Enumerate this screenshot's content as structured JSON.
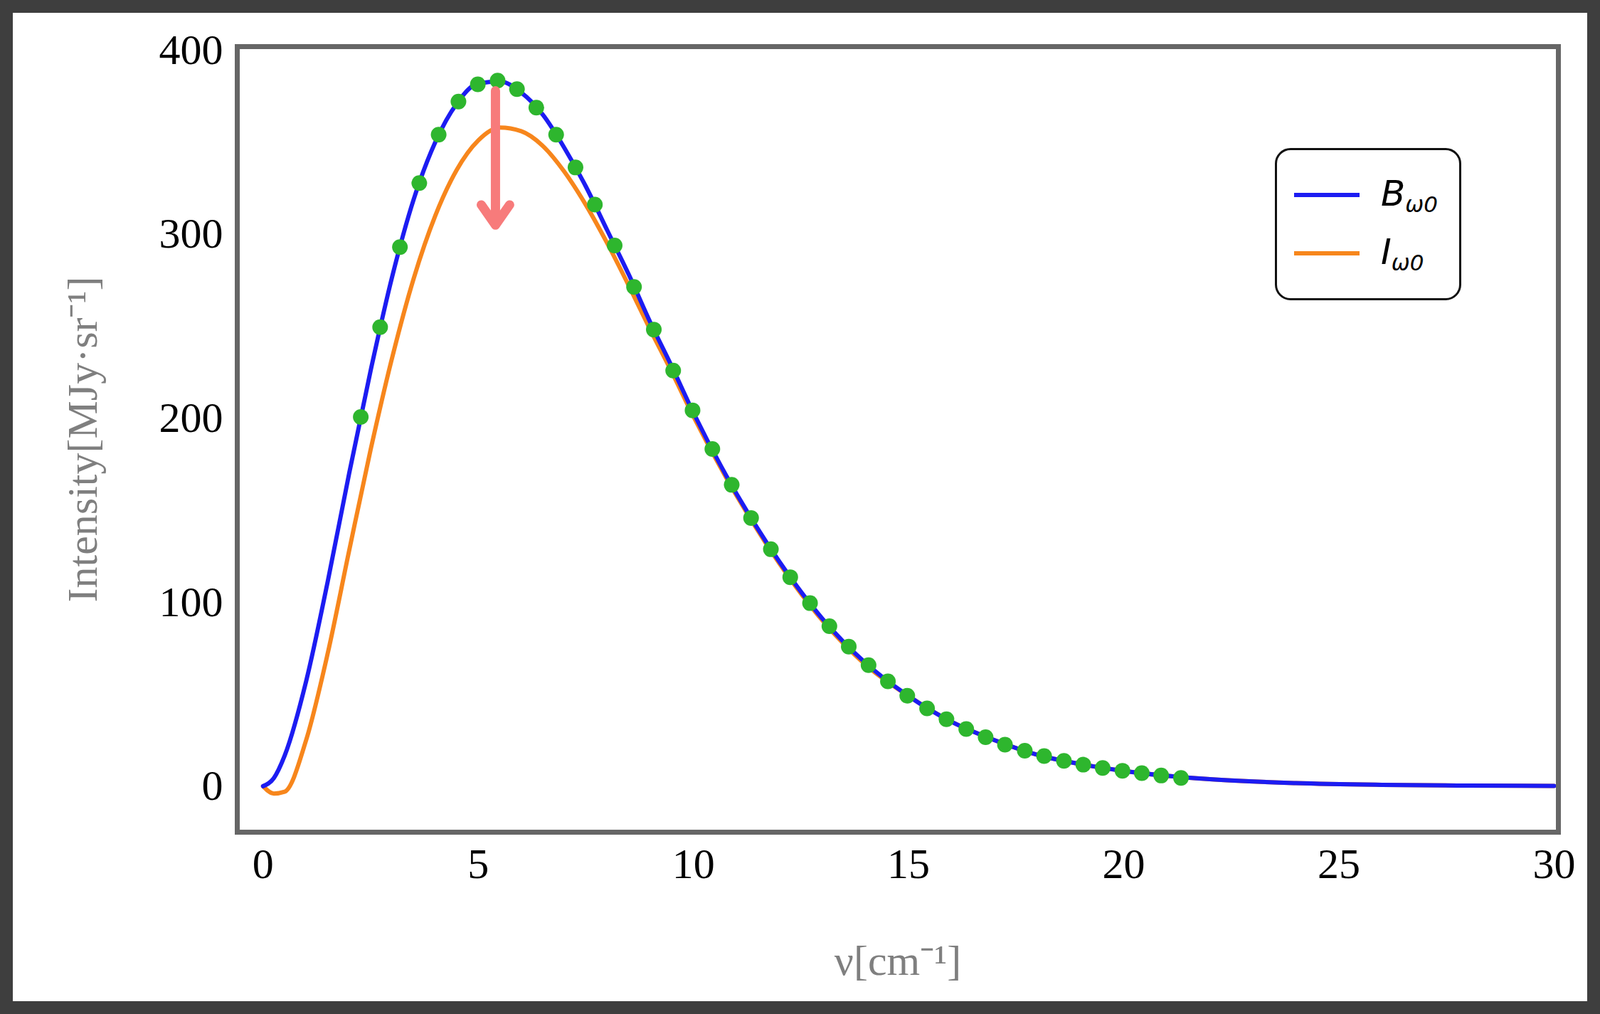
{
  "chart_data": {
    "type": "line",
    "xlabel": "ν[cm⁻¹]",
    "ylabel": "Intensity[MJy·sr⁻¹]",
    "xlim": [
      -0.6,
      30.1
    ],
    "ylim": [
      -25,
      402
    ],
    "xticks": [
      0,
      5,
      10,
      15,
      20,
      25,
      30
    ],
    "yticks": [
      0,
      100,
      200,
      300,
      400
    ],
    "legend": "top-right",
    "series": [
      {
        "name": "Bω0",
        "color": "#1c1cf2",
        "type": "line",
        "line_style": "solid",
        "x": [
          0,
          0.25,
          0.5,
          1,
          1.5,
          2,
          2.5,
          3,
          3.5,
          4,
          4.5,
          5,
          5.5,
          6,
          6.5,
          7,
          7.5,
          8,
          8.5,
          9,
          9.5,
          10,
          11,
          12,
          13,
          14,
          15,
          16,
          17,
          18,
          19,
          20,
          22,
          24,
          26,
          28,
          30
        ],
        "values": [
          0,
          4.4,
          16.5,
          57,
          111,
          170,
          226,
          277,
          319,
          350,
          371,
          382,
          383,
          377,
          365,
          347,
          326,
          302,
          278,
          252,
          228,
          203,
          159,
          122,
          91,
          67,
          49,
          35,
          25,
          17,
          12,
          8.3,
          3.8,
          1.7,
          0.76,
          0.33,
          0.14
        ]
      },
      {
        "name": "Iω0",
        "color": "#f7861c",
        "type": "line",
        "line_style": "solid",
        "x": [
          0,
          0.25,
          0.5,
          1,
          1.5,
          2,
          2.5,
          3,
          3.5,
          4,
          4.5,
          5,
          5.5,
          6,
          6.5,
          7,
          7.5,
          8,
          8.5,
          9,
          9.5,
          10,
          11,
          12,
          13,
          14,
          15,
          16,
          17,
          18,
          19,
          20,
          22,
          24,
          26,
          28,
          30
        ],
        "values": [
          0,
          -4,
          -3,
          25,
          72,
          128,
          183,
          233,
          276,
          310,
          335,
          351,
          358,
          356,
          348,
          334,
          316,
          295,
          272,
          248,
          225,
          201,
          158,
          121,
          90,
          66,
          49,
          35,
          25,
          17,
          12,
          8.3,
          3.8,
          1.7,
          0.76,
          0.33,
          0.14
        ]
      },
      {
        "type": "scatter",
        "color": "#2eb62e",
        "marker": "circle",
        "x": [
          2.27,
          2.72,
          3.18,
          3.63,
          4.08,
          4.54,
          4.99,
          5.45,
          5.9,
          6.35,
          6.81,
          7.26,
          7.71,
          8.17,
          8.62,
          9.08,
          9.53,
          9.98,
          10.44,
          10.89,
          11.34,
          11.8,
          12.25,
          12.71,
          13.16,
          13.61,
          14.07,
          14.52,
          14.97,
          15.43,
          15.88,
          16.34,
          16.79,
          17.24,
          17.7,
          18.15,
          18.61,
          19.06,
          19.51,
          19.97,
          20.42,
          20.87,
          21.33
        ],
        "values": [
          200.7,
          249.5,
          293.0,
          327.8,
          354.1,
          372.1,
          381.5,
          383.5,
          378.9,
          368.8,
          354.1,
          336.3,
          316.1,
          293.9,
          271.4,
          248.2,
          225.9,
          204.3,
          183.3,
          163.8,
          145.8,
          128.8,
          113.6,
          99.5,
          87.0,
          75.9,
          65.8,
          57.0,
          49.2,
          42.3,
          36.4,
          31.1,
          26.6,
          22.6,
          19.3,
          16.4,
          13.8,
          11.7,
          9.9,
          8.4,
          7.1,
          5.8,
          4.5
        ]
      }
    ],
    "annotation_arrow": {
      "x": 5.4,
      "from": 378,
      "to": 305,
      "color": "#f77b7b"
    }
  }
}
